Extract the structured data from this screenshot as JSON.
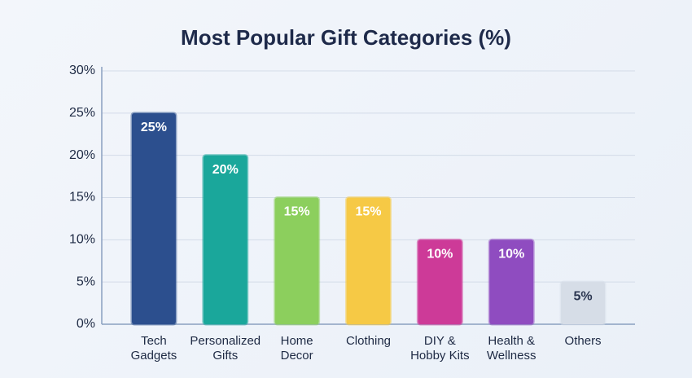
{
  "chart_data": {
    "type": "bar",
    "title": "Most Popular Gift Categories (%)",
    "categories": [
      "Tech Gadgets",
      "Personalized Gifts",
      "Home Decor",
      "Clothing",
      "DIY & Hobby Kits",
      "Health & Wellness",
      "Others"
    ],
    "values": [
      25,
      20,
      15,
      15,
      10,
      10,
      5
    ],
    "value_labels": [
      "25%",
      "20%",
      "15%",
      "15%",
      "10%",
      "10%",
      "5%"
    ],
    "colors": [
      "#2c4f8e",
      "#1aa79b",
      "#8ccf5d",
      "#f6c945",
      "#cd3a98",
      "#8f4cc0",
      "#d6dde7"
    ],
    "ylim": [
      0,
      30
    ],
    "yticks": [
      {
        "value": 0,
        "label": "0%"
      },
      {
        "value": 5,
        "label": "5%"
      },
      {
        "value": 10,
        "label": "10%"
      },
      {
        "value": 15,
        "label": "15%"
      },
      {
        "value": 20,
        "label": "20%"
      },
      {
        "value": 25,
        "label": "25%"
      },
      {
        "value": 30,
        "label": "30%"
      }
    ],
    "grid": true
  }
}
